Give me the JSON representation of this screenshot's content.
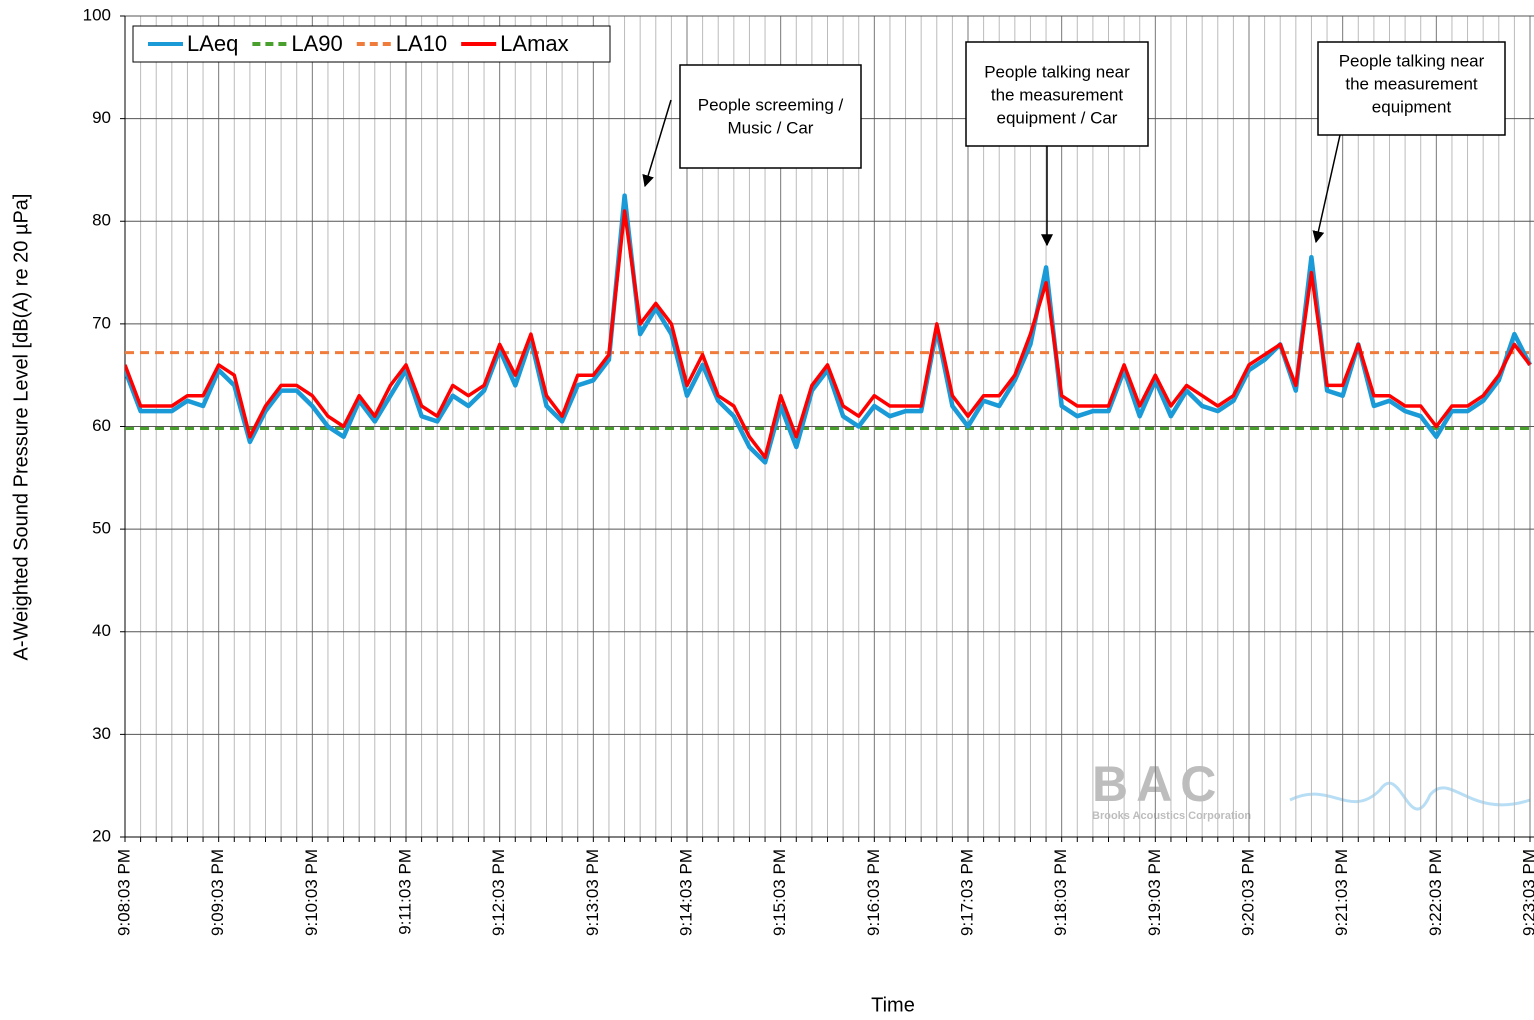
{
  "chart_data": {
    "type": "line",
    "ylabel": "A-Weighted Sound Pressure Level [dB(A) re 20 µPa]",
    "xlabel": "Time",
    "categories": [
      "9:08:03 PM",
      null,
      null,
      null,
      null,
      null,
      "9:09:03 PM",
      null,
      null,
      null,
      null,
      null,
      "9:10:03 PM",
      null,
      null,
      null,
      null,
      null,
      "9:11:03 PM",
      null,
      null,
      null,
      null,
      null,
      "9:12:03 PM",
      null,
      null,
      null,
      null,
      null,
      "9:13:03 PM",
      null,
      null,
      null,
      null,
      null,
      "9:14:03 PM",
      null,
      null,
      null,
      null,
      null,
      "9:15:03 PM",
      null,
      null,
      null,
      null,
      null,
      "9:16:03 PM",
      null,
      null,
      null,
      null,
      null,
      "9:17:03 PM",
      null,
      null,
      null,
      null,
      null,
      "9:18:03 PM",
      null,
      null,
      null,
      null,
      null,
      "9:19:03 PM",
      null,
      null,
      null,
      null,
      null,
      "9:20:03 PM",
      null,
      null,
      null,
      null,
      null,
      "9:21:03 PM",
      null,
      null,
      null,
      null,
      null,
      "9:22:03 PM",
      null,
      null,
      null,
      null,
      null,
      "9:23:03 PM"
    ],
    "series": [
      {
        "name": "LAeq",
        "color": "#1a9ad6",
        "values": [
          65.5,
          61.5,
          61.5,
          61.5,
          62.5,
          62,
          65.5,
          64,
          58.5,
          61.5,
          63.5,
          63.5,
          62,
          60,
          59,
          62.5,
          60.5,
          63,
          65.5,
          61,
          60.5,
          63,
          62,
          63.5,
          67.5,
          64,
          68.5,
          62,
          60.5,
          64,
          64.5,
          66.5,
          82.5,
          69,
          71.5,
          69,
          63,
          66,
          62.5,
          61,
          58,
          56.5,
          62,
          58,
          63.5,
          65.5,
          61,
          60,
          62,
          61,
          61.5,
          61.5,
          69.5,
          62,
          60,
          62.5,
          62,
          64.5,
          68,
          75.5,
          62,
          61,
          61.5,
          61.5,
          65.5,
          61,
          64.5,
          61,
          63.5,
          62,
          61.5,
          62.5,
          65.5,
          66.5,
          68,
          63.5,
          76.5,
          63.5,
          63,
          68,
          62,
          62.5,
          61.5,
          61,
          59,
          61.5,
          61.5,
          62.5,
          64.5,
          69,
          66
        ]
      },
      {
        "name": "LAmax",
        "color": "#ff0000",
        "values": [
          66,
          62,
          62,
          62,
          63,
          63,
          66,
          65,
          59,
          62,
          64,
          64,
          63,
          61,
          60,
          63,
          61,
          64,
          66,
          62,
          61,
          64,
          63,
          64,
          68,
          65,
          69,
          63,
          61,
          65,
          65,
          67,
          81,
          70,
          72,
          70,
          64,
          67,
          63,
          62,
          59,
          57,
          63,
          59,
          64,
          66,
          62,
          61,
          63,
          62,
          62,
          62,
          70,
          63,
          61,
          63,
          63,
          65,
          69,
          74,
          63,
          62,
          62,
          62,
          66,
          62,
          65,
          62,
          64,
          63,
          62,
          63,
          66,
          67,
          68,
          64,
          75,
          64,
          64,
          68,
          63,
          63,
          62,
          62,
          60,
          62,
          62,
          63,
          65,
          68,
          66
        ]
      }
    ],
    "reference_lines": [
      {
        "name": "LA90",
        "color": "#4aa02c",
        "value": 59.8,
        "dashed": true
      },
      {
        "name": "LA10",
        "color": "#f07c3c",
        "value": 67.2,
        "dashed": true
      }
    ],
    "legend_order": [
      "LAeq",
      "LA90",
      "LA10",
      "LAmax"
    ],
    "legend": "upper left",
    "ylim": [
      20,
      100
    ],
    "yticks": [
      20,
      30,
      40,
      50,
      60,
      70,
      80,
      90,
      100
    ],
    "grid": true,
    "annotations": [
      {
        "lines": [
          "People screeming /",
          "Music / Car"
        ]
      },
      {
        "lines": [
          "People talking near",
          "the measurement",
          "equipment / Car"
        ]
      },
      {
        "lines": [
          "People talking near",
          "the measurement",
          "equipment"
        ]
      }
    ],
    "watermark": {
      "logo": "BAC",
      "company": "Brooks Acoustics Corporation"
    }
  }
}
